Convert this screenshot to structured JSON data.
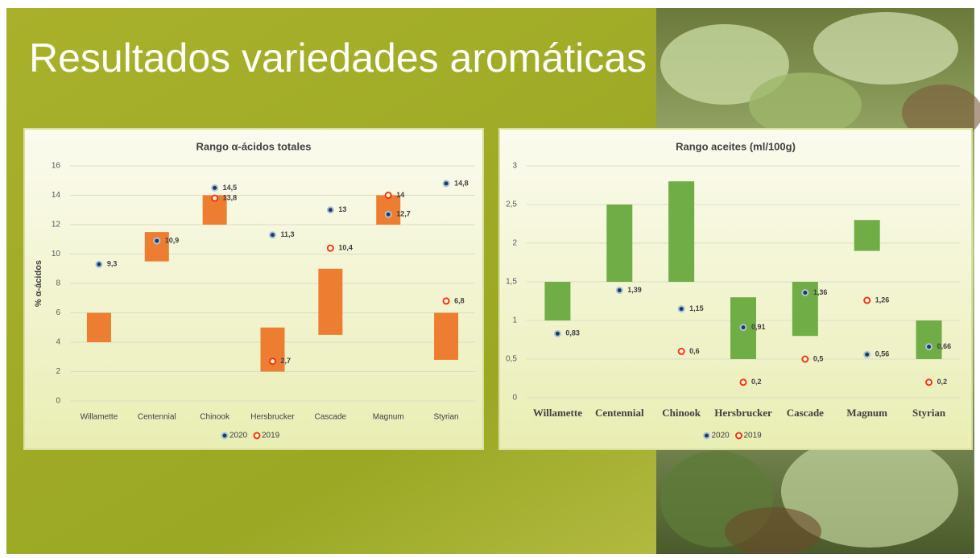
{
  "slide_title": "Resultados variedades aromáticas",
  "chart_data": [
    {
      "type": "floating-bar",
      "title": "Rango α-ácidos totales",
      "ylabel": "% α-ácidos",
      "categories": [
        "Willamette",
        "Centennial",
        "Chinook",
        "Hersbrucker",
        "Cascade",
        "Magnum",
        "Styrian"
      ],
      "ranges": {
        "low": [
          4,
          9.5,
          12,
          2,
          4.5,
          12,
          2.8
        ],
        "high": [
          6,
          11.5,
          14,
          5,
          9,
          14,
          6
        ],
        "color": "#ed7d31"
      },
      "series": [
        {
          "name": "2020",
          "color": "#1f3864",
          "hollow": false,
          "values": [
            9.3,
            10.9,
            14.5,
            11.3,
            13,
            12.7,
            14.8
          ],
          "value_labels": [
            "9,3",
            "10,9",
            "14,5",
            "11,3",
            "13",
            "12,7",
            "14,8"
          ]
        },
        {
          "name": "2019",
          "color": "#ff3300",
          "hollow": true,
          "values": [
            null,
            null,
            13.8,
            2.7,
            10.4,
            14,
            6.8
          ],
          "value_labels": [
            null,
            null,
            "13,8",
            "2,7",
            "10,4",
            "14",
            "6,8"
          ]
        }
      ],
      "ylim": [
        0,
        16
      ],
      "yticks": [
        0,
        2,
        4,
        6,
        8,
        10,
        12,
        14,
        16
      ],
      "grid": true
    },
    {
      "type": "floating-bar",
      "title": "Rango aceites (ml/100g)",
      "categories": [
        "Willamette",
        "Centennial",
        "Chinook",
        "Hersbrucker",
        "Cascade",
        "Magnum",
        "Styrian"
      ],
      "ranges": {
        "low": [
          1,
          1.5,
          1.5,
          0.5,
          0.8,
          1.9,
          0.5
        ],
        "high": [
          1.5,
          2.5,
          2.8,
          1.3,
          1.5,
          2.3,
          1
        ],
        "color": "#70ad47"
      },
      "series": [
        {
          "name": "2020",
          "color": "#1f3864",
          "hollow": false,
          "values": [
            0.83,
            1.39,
            1.15,
            0.91,
            1.36,
            0.56,
            0.66
          ],
          "value_labels": [
            "0,83",
            "1,39",
            "1,15",
            "0,91",
            "1,36",
            "0,56",
            "0,66"
          ]
        },
        {
          "name": "2019",
          "color": "#ff3300",
          "hollow": true,
          "values": [
            null,
            null,
            0.6,
            0.2,
            0.5,
            1.26,
            0.2
          ],
          "value_labels": [
            null,
            null,
            "0,6",
            "0,2",
            "0,5",
            "1,26",
            "0,2"
          ]
        }
      ],
      "ylim": [
        0,
        3
      ],
      "yticks": [
        0,
        {
          "value": 0.5,
          "label": "0,5"
        },
        1,
        {
          "value": 1.5,
          "label": "1,5"
        },
        2,
        {
          "value": 2.5,
          "label": "2,5"
        },
        3
      ],
      "grid": true
    }
  ]
}
